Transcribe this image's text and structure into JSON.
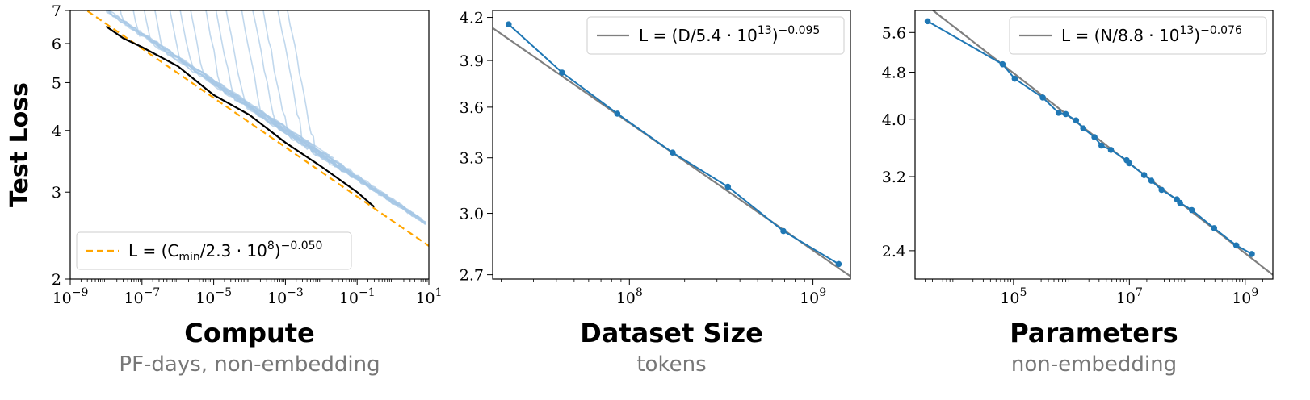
{
  "chart_data": [
    {
      "type": "line",
      "xscale": "log",
      "yscale": "log",
      "xlim": [
        1e-09,
        10
      ],
      "ylim": [
        2,
        7
      ],
      "xticks": [
        1e-09,
        1e-07,
        1e-05,
        0.001,
        0.1,
        10
      ],
      "xtick_labels": [
        {
          "base": "10",
          "exp": "−9"
        },
        {
          "base": "10",
          "exp": "−7"
        },
        {
          "base": "10",
          "exp": "−5"
        },
        {
          "base": "10",
          "exp": "−3"
        },
        {
          "base": "10",
          "exp": "−1"
        },
        {
          "base": "10",
          "exp": "1"
        }
      ],
      "yticks": [
        2,
        3,
        4,
        5,
        6,
        7
      ],
      "ytick_labels": [
        "2",
        "3",
        "4",
        "5",
        "6",
        "7"
      ],
      "ylabel": "Test Loss",
      "xlabel": "Compute",
      "xlabel_sub": "PF-days, non-embedding",
      "legend": {
        "placement": "lower-left",
        "entries": [
          {
            "pre": "L = (C",
            "sub": "min",
            "mid": "/2.3 · 10",
            "sup1": "8",
            "post": ")",
            "sup2": "−0.050",
            "style": "dashed",
            "color": "#ffa500"
          }
        ]
      },
      "fit": {
        "scale": 230000000.0,
        "exponent": -0.05,
        "color": "#ffa500"
      },
      "frontier": {
        "color": "#000000",
        "x": [
          1e-08,
          3e-08,
          1e-07,
          1e-06,
          1e-05,
          0.0001,
          0.001,
          0.01,
          0.1,
          0.3
        ],
        "y": [
          6.5,
          6.15,
          5.9,
          5.4,
          4.72,
          4.3,
          3.78,
          3.38,
          3.0,
          2.8
        ]
      },
      "curves_color": "#a6c8e6",
      "curve_starts": [
        1e-09,
        1e-09,
        2e-09,
        4e-09,
        8e-09,
        2e-08,
        5e-08,
        1e-07,
        2e-07,
        5e-07,
        1e-06,
        2e-06,
        5e-06,
        1e-05,
        2e-05,
        5e-05,
        0.0001,
        0.0002,
        0.0005,
        0.001
      ]
    },
    {
      "type": "line",
      "xscale": "log",
      "yscale": "log",
      "xlim": [
        18000000.0,
        1600000000.0
      ],
      "ylim": [
        2.68,
        4.25
      ],
      "xticks": [
        100000000.0,
        1000000000.0
      ],
      "xtick_labels": [
        {
          "base": "10",
          "exp": "8"
        },
        {
          "base": "10",
          "exp": "9"
        }
      ],
      "yticks": [
        2.7,
        3.0,
        3.3,
        3.6,
        3.9,
        4.2
      ],
      "ytick_labels": [
        "2.7",
        "3.0",
        "3.3",
        "3.6",
        "3.9",
        "4.2"
      ],
      "xlabel": "Dataset Size",
      "xlabel_sub": "tokens",
      "legend": {
        "placement": "top-right",
        "entries": [
          {
            "pre": "L = (D/5.4 · 10",
            "sup1": "13",
            "post": ")",
            "sup2": "−0.095",
            "style": "solid",
            "color": "#7f7f7f"
          }
        ]
      },
      "fit": {
        "scale": 54000000000000.0,
        "exponent": -0.095,
        "color": "#7f7f7f"
      },
      "series": [
        {
          "color": "#1f77b4",
          "x": [
            22000000.0,
            43000000.0,
            86000000.0,
            172000000.0,
            344000000.0,
            690000000.0,
            1380000000.0
          ],
          "y": [
            4.15,
            3.82,
            3.56,
            3.33,
            3.14,
            2.91,
            2.75
          ]
        }
      ]
    },
    {
      "type": "line",
      "xscale": "log",
      "yscale": "log",
      "xlim": [
        2000.0,
        3000000000.0
      ],
      "ylim": [
        2.15,
        6.1
      ],
      "xticks": [
        100000.0,
        10000000.0,
        1000000000.0
      ],
      "xtick_labels": [
        {
          "base": "10",
          "exp": "5"
        },
        {
          "base": "10",
          "exp": "7"
        },
        {
          "base": "10",
          "exp": "9"
        }
      ],
      "yticks": [
        2.4,
        3.2,
        4.0,
        4.8,
        5.6
      ],
      "ytick_labels": [
        "2.4",
        "3.2",
        "4.0",
        "4.8",
        "5.6"
      ],
      "xlabel": "Parameters",
      "xlabel_sub": "non-embedding",
      "legend": {
        "placement": "top-right",
        "entries": [
          {
            "pre": "L = (N/8.8 · 10",
            "sup1": "13",
            "post": ")",
            "sup2": "−0.076",
            "style": "solid",
            "color": "#7f7f7f"
          }
        ]
      },
      "fit": {
        "scale": 88000000000000.0,
        "exponent": -0.076,
        "color": "#7f7f7f"
      },
      "series": [
        {
          "color": "#1f77b4",
          "x": [
            3300.0,
            65000.0,
            105000.0,
            320000.0,
            600000.0,
            800000.0,
            1200000.0,
            1600000.0,
            2500000.0,
            3300000.0,
            4800000.0,
            9000000.0,
            10000000.0,
            18000000.0,
            24000000.0,
            36000000.0,
            66000000.0,
            75000000.0,
            120000000.0,
            290000000.0,
            700000000.0,
            1300000000.0
          ],
          "y": [
            5.85,
            4.95,
            4.68,
            4.35,
            4.1,
            4.08,
            3.98,
            3.86,
            3.73,
            3.61,
            3.55,
            3.41,
            3.37,
            3.22,
            3.15,
            3.04,
            2.93,
            2.89,
            2.81,
            2.62,
            2.45,
            2.37
          ]
        }
      ]
    }
  ]
}
